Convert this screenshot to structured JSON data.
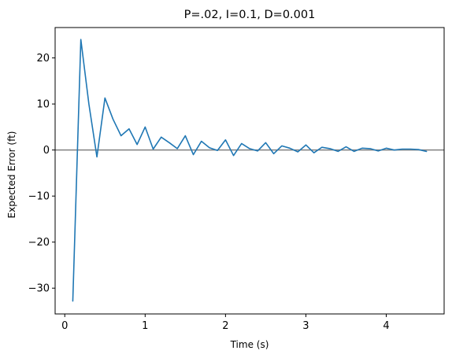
{
  "chart_data": {
    "type": "line",
    "title": "P=.02, I=0.1, D=0.001",
    "xlabel": "Time (s)",
    "ylabel": "Expected Error (ft)",
    "xlim": [
      -0.12,
      4.72
    ],
    "ylim": [
      -35.6,
      26.6
    ],
    "xticks": [
      0,
      1,
      2,
      3,
      4
    ],
    "xtick_labels": [
      "0",
      "1",
      "2",
      "3",
      "4"
    ],
    "yticks": [
      -30,
      -20,
      -10,
      0,
      10,
      20
    ],
    "ytick_labels": [
      "−30",
      "−20",
      "−10",
      "0",
      "10",
      "20"
    ],
    "grid": false,
    "reference_line": {
      "y": 0,
      "color": "#808080"
    },
    "series": [
      {
        "color": "#1f77b4",
        "x": [
          0.1,
          0.2,
          0.3,
          0.4,
          0.5,
          0.6,
          0.7,
          0.8,
          0.9,
          1.0,
          1.1,
          1.2,
          1.3,
          1.4,
          1.5,
          1.6,
          1.7,
          1.8,
          1.9,
          2.0,
          2.1,
          2.2,
          2.3,
          2.4,
          2.5,
          2.6,
          2.7,
          2.8,
          2.9,
          3.0,
          3.1,
          3.2,
          3.3,
          3.4,
          3.5,
          3.6,
          3.7,
          3.8,
          3.9,
          4.0,
          4.1,
          4.2,
          4.3,
          4.4,
          4.5
        ],
        "y": [
          -32.8,
          24.0,
          10.0,
          -1.5,
          11.3,
          6.7,
          3.1,
          4.6,
          1.2,
          5.0,
          0.2,
          2.8,
          1.6,
          0.3,
          3.1,
          -1.0,
          1.9,
          0.5,
          -0.1,
          2.2,
          -1.2,
          1.4,
          0.3,
          -0.2,
          1.6,
          -0.8,
          0.9,
          0.4,
          -0.4,
          1.1,
          -0.6,
          0.6,
          0.3,
          -0.3,
          0.7,
          -0.3,
          0.4,
          0.3,
          -0.2,
          0.4,
          0.0,
          0.2,
          0.2,
          0.1,
          -0.3
        ]
      }
    ]
  }
}
